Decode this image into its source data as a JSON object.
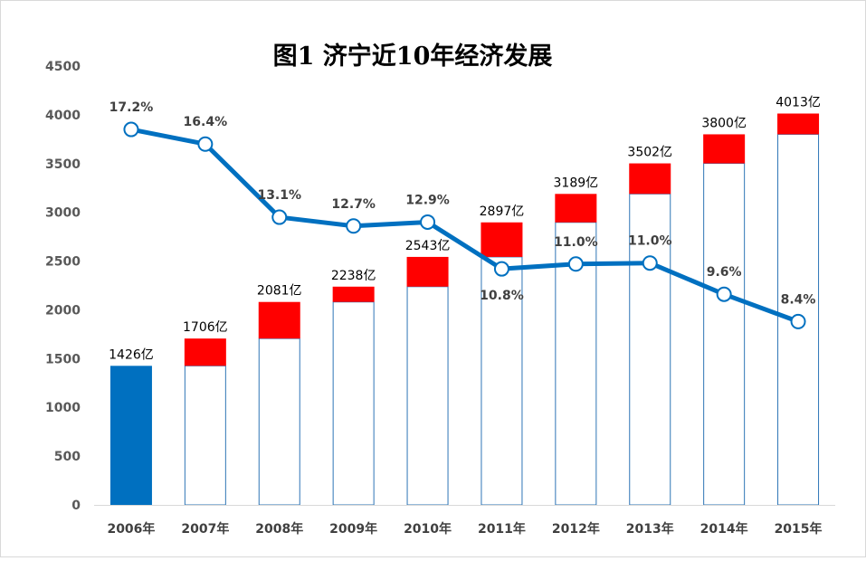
{
  "chart_data": {
    "type": "bar",
    "title": "图1 济宁近10年经济发展",
    "categories": [
      "2006年",
      "2007年",
      "2008年",
      "2009年",
      "2010年",
      "2011年",
      "2012年",
      "2013年",
      "2014年",
      "2015年"
    ],
    "series": [
      {
        "values": [
          1426,
          1706,
          2081,
          2238,
          2543,
          2897,
          3189,
          3502,
          3800,
          4013
        ]
      },
      {
        "values": [
          null,
          280,
          375,
          157,
          305,
          354,
          292,
          313,
          298,
          213
        ]
      },
      {
        "values": [
          17.2,
          16.4,
          13.1,
          12.7,
          12.9,
          10.8,
          11.0,
          11.0,
          9.6,
          8.4
        ]
      }
    ],
    "bar_labels": [
      "1426亿",
      "1706亿",
      "2081亿",
      "2238亿",
      "2543亿",
      "2897亿",
      "3189亿",
      "3502亿",
      "3800亿",
      "4013亿"
    ],
    "point_labels": [
      "17.2%",
      "16.4%",
      "13.1%",
      "12.7%",
      "12.9%",
      "10.8%",
      "11.0%",
      "11.0%",
      "9.6%",
      "8.4%"
    ],
    "line_y_in_axis_units": [
      3850,
      3700,
      2950,
      2860,
      2900,
      2420,
      2470,
      2480,
      2160,
      1880
    ],
    "ylim": [
      0,
      4500
    ],
    "yticks": [
      0,
      500,
      1000,
      1500,
      2000,
      2500,
      3000,
      3500,
      4000,
      4500
    ],
    "grid": false,
    "legend": "none",
    "colors": {
      "first_bar": "#0070c0",
      "bar_outline": "#2e75b6",
      "increment": "#ff0000",
      "line": "#0070c0",
      "marker_fill": "#ffffff",
      "axis": "#d9d9d9"
    }
  }
}
